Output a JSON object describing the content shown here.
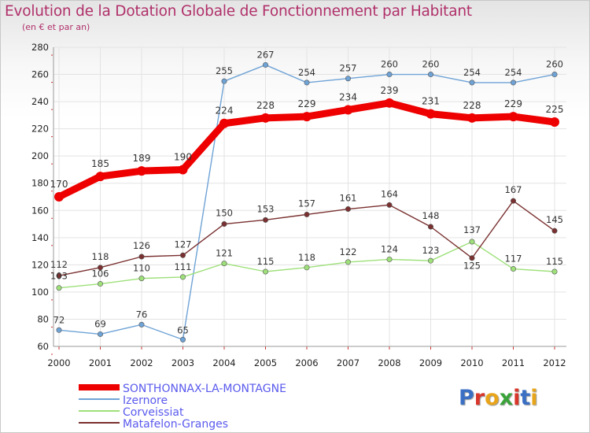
{
  "title": "Evolution de la Dotation Globale de Fonctionnement par Habitant",
  "subtitle": "(en € et par an)",
  "logo": {
    "text": "Proxiti",
    "colors": [
      "#3a6fc4",
      "#d9362b",
      "#e8a51a",
      "#3aa33a",
      "#d9362b",
      "#3a6fc4",
      "#e8a51a"
    ]
  },
  "colors": {
    "title": "#b0306a",
    "axis_text": "#222222",
    "grid": "#e3e3e3"
  },
  "chart_data": {
    "type": "line",
    "title": "Evolution de la Dotation Globale de Fonctionnement par Habitant",
    "xlabel": "",
    "ylabel": "",
    "categories": [
      "2000",
      "2001",
      "2002",
      "2003",
      "2004",
      "2005",
      "2006",
      "2007",
      "2008",
      "2009",
      "2010",
      "2011",
      "2012"
    ],
    "ylim": [
      60,
      280
    ],
    "yticks": [
      60,
      80,
      100,
      120,
      140,
      160,
      180,
      200,
      220,
      240,
      260,
      280
    ],
    "grid": true,
    "legend_position": "bottom-left",
    "series": [
      {
        "name": "SONTHONNAX-LA-MONTAGNE",
        "color": "#ee0000",
        "width": "thick",
        "values": [
          170,
          185,
          189,
          190,
          224,
          228,
          229,
          234,
          239,
          231,
          228,
          229,
          225
        ]
      },
      {
        "name": "Izernore",
        "color": "#6fa3d6",
        "width": "thin",
        "values": [
          72,
          69,
          76,
          65,
          255,
          267,
          254,
          257,
          260,
          260,
          254,
          254,
          260
        ]
      },
      {
        "name": "Corveissiat",
        "color": "#9ee07a",
        "width": "thin",
        "values": [
          103,
          106,
          110,
          111,
          121,
          115,
          118,
          122,
          124,
          123,
          137,
          117,
          115
        ]
      },
      {
        "name": "Matafelon-Granges",
        "color": "#7a3030",
        "width": "thin",
        "values": [
          112,
          118,
          126,
          127,
          150,
          153,
          157,
          161,
          164,
          148,
          125,
          167,
          145
        ]
      }
    ]
  }
}
